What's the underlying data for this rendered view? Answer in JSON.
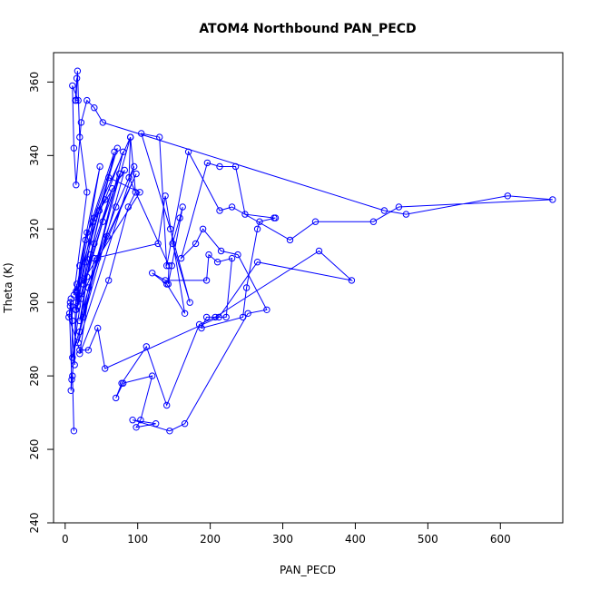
{
  "chart_data": {
    "type": "scatter",
    "title": "ATOM4 Northbound PAN_PECD",
    "xlabel": "PAN_PECD",
    "ylabel": "Theta (K)",
    "xlim": [
      -16,
      686
    ],
    "ylim": [
      240,
      368
    ],
    "xticks": [
      0,
      100,
      200,
      300,
      400,
      500,
      600
    ],
    "yticks": [
      240,
      260,
      280,
      300,
      320,
      340,
      360
    ],
    "grid": false,
    "legend": "none",
    "line_color": "#0000ff",
    "series": [
      {
        "points": [
          [
            12,
            265
          ],
          [
            10,
            280
          ],
          [
            20,
            310
          ],
          [
            48,
            337
          ],
          [
            15,
            300
          ],
          [
            28,
            317
          ],
          [
            68,
            341
          ],
          [
            25,
            305
          ],
          [
            40,
            323
          ],
          [
            90,
            345
          ],
          [
            20,
            295
          ],
          [
            35,
            313
          ],
          [
            60,
            334
          ],
          [
            103,
            330
          ],
          [
            15,
            303
          ],
          [
            30,
            319
          ],
          [
            55,
            328
          ],
          [
            80,
            341
          ],
          [
            25,
            296
          ],
          [
            45,
            312
          ],
          [
            70,
            326
          ],
          [
            95,
            337
          ],
          [
            18,
            289
          ],
          [
            30,
            307
          ],
          [
            52,
            322
          ],
          [
            75,
            335
          ],
          [
            10,
            285
          ],
          [
            22,
            301
          ],
          [
            40,
            316
          ],
          [
            65,
            331
          ],
          [
            17,
            299
          ],
          [
            28,
            311
          ],
          [
            47,
            325
          ],
          [
            82,
            336
          ],
          [
            20,
            292
          ],
          [
            32,
            304
          ],
          [
            58,
            318
          ],
          [
            98,
            335
          ],
          [
            15,
            298
          ],
          [
            22,
            306
          ],
          [
            38,
            322
          ],
          [
            72,
            342
          ],
          [
            12,
            302
          ],
          [
            30,
            330
          ],
          [
            20,
            345
          ],
          [
            17,
            363
          ],
          [
            15,
            355
          ],
          [
            16,
            361
          ],
          [
            14,
            355
          ],
          [
            18,
            355
          ],
          [
            10,
            359
          ],
          [
            12,
            342
          ],
          [
            15,
            332
          ],
          [
            22,
            349
          ],
          [
            30,
            355
          ],
          [
            40,
            353
          ],
          [
            52,
            349
          ],
          [
            440,
            325
          ],
          [
            470,
            324
          ],
          [
            610,
            329
          ],
          [
            672,
            328
          ],
          [
            460,
            326
          ],
          [
            425,
            322
          ],
          [
            345,
            322
          ],
          [
            310,
            317
          ],
          [
            230,
            326
          ],
          [
            213,
            325
          ],
          [
            170,
            341
          ],
          [
            140,
            310
          ],
          [
            130,
            345
          ],
          [
            105,
            346
          ],
          [
            145,
            320
          ],
          [
            172,
            300
          ],
          [
            148,
            316
          ],
          [
            158,
            323
          ],
          [
            162,
            326
          ],
          [
            147,
            310
          ],
          [
            142,
            305
          ],
          [
            143,
            310
          ],
          [
            88,
            334
          ],
          [
            90,
            345
          ],
          [
            97,
            330
          ],
          [
            87,
            326
          ],
          [
            60,
            306
          ],
          [
            20,
            286
          ],
          [
            40,
            312
          ],
          [
            128,
            316
          ],
          [
            138,
            329
          ],
          [
            165,
            297
          ],
          [
            140,
            305
          ],
          [
            120,
            308
          ],
          [
            138,
            306
          ],
          [
            195,
            306
          ],
          [
            198,
            313
          ],
          [
            210,
            311
          ],
          [
            230,
            312
          ],
          [
            222,
            296
          ],
          [
            195,
            296
          ],
          [
            188,
            293
          ],
          [
            245,
            296
          ],
          [
            250,
            304
          ],
          [
            265,
            320
          ],
          [
            268,
            322
          ],
          [
            290,
            323
          ],
          [
            288,
            323
          ],
          [
            248,
            324
          ],
          [
            235,
            337
          ],
          [
            213,
            337
          ],
          [
            196,
            338
          ],
          [
            160,
            312
          ],
          [
            180,
            316
          ],
          [
            190,
            320
          ],
          [
            215,
            314
          ],
          [
            238,
            313
          ],
          [
            278,
            298
          ],
          [
            252,
            297
          ],
          [
            165,
            267
          ],
          [
            144,
            265
          ],
          [
            93,
            268
          ],
          [
            125,
            267
          ],
          [
            98,
            266
          ],
          [
            104,
            268
          ],
          [
            120,
            280
          ],
          [
            80,
            278
          ],
          [
            70,
            274
          ],
          [
            78,
            278
          ],
          [
            112,
            288
          ],
          [
            140,
            272
          ],
          [
            185,
            294
          ],
          [
            207,
            296
          ],
          [
            350,
            314
          ],
          [
            395,
            306
          ],
          [
            265,
            311
          ],
          [
            212,
            296
          ],
          [
            55,
            282
          ],
          [
            45,
            293
          ],
          [
            32,
            287
          ],
          [
            20,
            287
          ],
          [
            5,
            296
          ],
          [
            7,
            299
          ],
          [
            8,
            301
          ],
          [
            10,
            295
          ],
          [
            8,
            276
          ],
          [
            9,
            279
          ],
          [
            6,
            297
          ],
          [
            7,
            300
          ],
          [
            13,
            283
          ],
          [
            14,
            298
          ],
          [
            16,
            305
          ],
          [
            18,
            302
          ]
        ]
      }
    ]
  }
}
